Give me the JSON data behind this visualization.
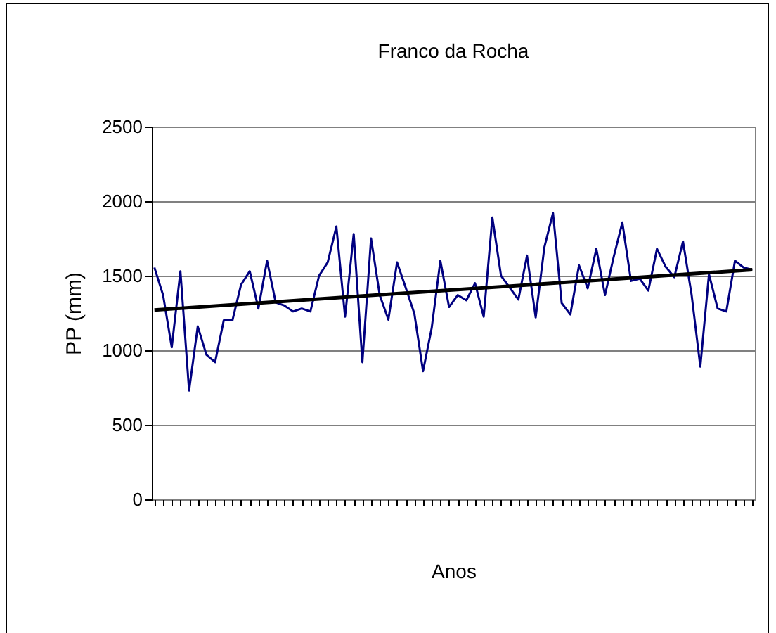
{
  "chart_data": {
    "type": "line",
    "title": "Franco da Rocha",
    "xlabel": "Anos",
    "ylabel": "PP (mm)",
    "categories": [
      null,
      null,
      null,
      null,
      null,
      null,
      null,
      null,
      null,
      null,
      null,
      null,
      null,
      null,
      null,
      null,
      null,
      null,
      null,
      null,
      null,
      null,
      null,
      null,
      null,
      null,
      null,
      null,
      null,
      null,
      null,
      null,
      null,
      null,
      null,
      null,
      null,
      null,
      null,
      null,
      null,
      null,
      null,
      null,
      null,
      null,
      null,
      null,
      null,
      null,
      null,
      null,
      null,
      null,
      null,
      null,
      null,
      null,
      null,
      null,
      null,
      null,
      null,
      null,
      null,
      null,
      null,
      null,
      null,
      null
    ],
    "series": [
      {
        "color": "#000080",
        "values": [
          1555,
          1370,
          1020,
          1530,
          730,
          1160,
          970,
          920,
          1200,
          1200,
          1440,
          1530,
          1280,
          1600,
          1320,
          1300,
          1260,
          1280,
          1260,
          1500,
          1590,
          1830,
          1225,
          1780,
          920,
          1750,
          1370,
          1205,
          1590,
          1420,
          1245,
          860,
          1150,
          1600,
          1290,
          1370,
          1335,
          1450,
          1225,
          1890,
          1500,
          1420,
          1340,
          1635,
          1220,
          1690,
          1920,
          1317,
          1240,
          1570,
          1415,
          1680,
          1370,
          1625,
          1857,
          1465,
          1480,
          1400,
          1680,
          1560,
          1490,
          1730,
          1370,
          890,
          1510,
          1280,
          1260,
          1600,
          1555,
          1540
        ]
      },
      {
        "type": "line",
        "color": "#000000",
        "values": [
          1270,
          null,
          null,
          null,
          null,
          null,
          null,
          null,
          null,
          null,
          null,
          null,
          null,
          null,
          null,
          null,
          null,
          null,
          null,
          null,
          null,
          null,
          null,
          null,
          null,
          null,
          null,
          null,
          null,
          null,
          null,
          null,
          null,
          null,
          null,
          null,
          null,
          null,
          null,
          null,
          null,
          null,
          null,
          null,
          null,
          null,
          null,
          null,
          null,
          null,
          null,
          null,
          null,
          null,
          null,
          null,
          null,
          null,
          null,
          null,
          null,
          null,
          null,
          null,
          null,
          null,
          null,
          null,
          null,
          1540
        ]
      }
    ],
    "ylim": [
      0,
      2500
    ],
    "yticks": [
      0,
      500,
      1000,
      1500,
      2000,
      2500
    ],
    "grid": "y",
    "tick_labels": "y",
    "marker": "none",
    "line_style": "solid"
  }
}
